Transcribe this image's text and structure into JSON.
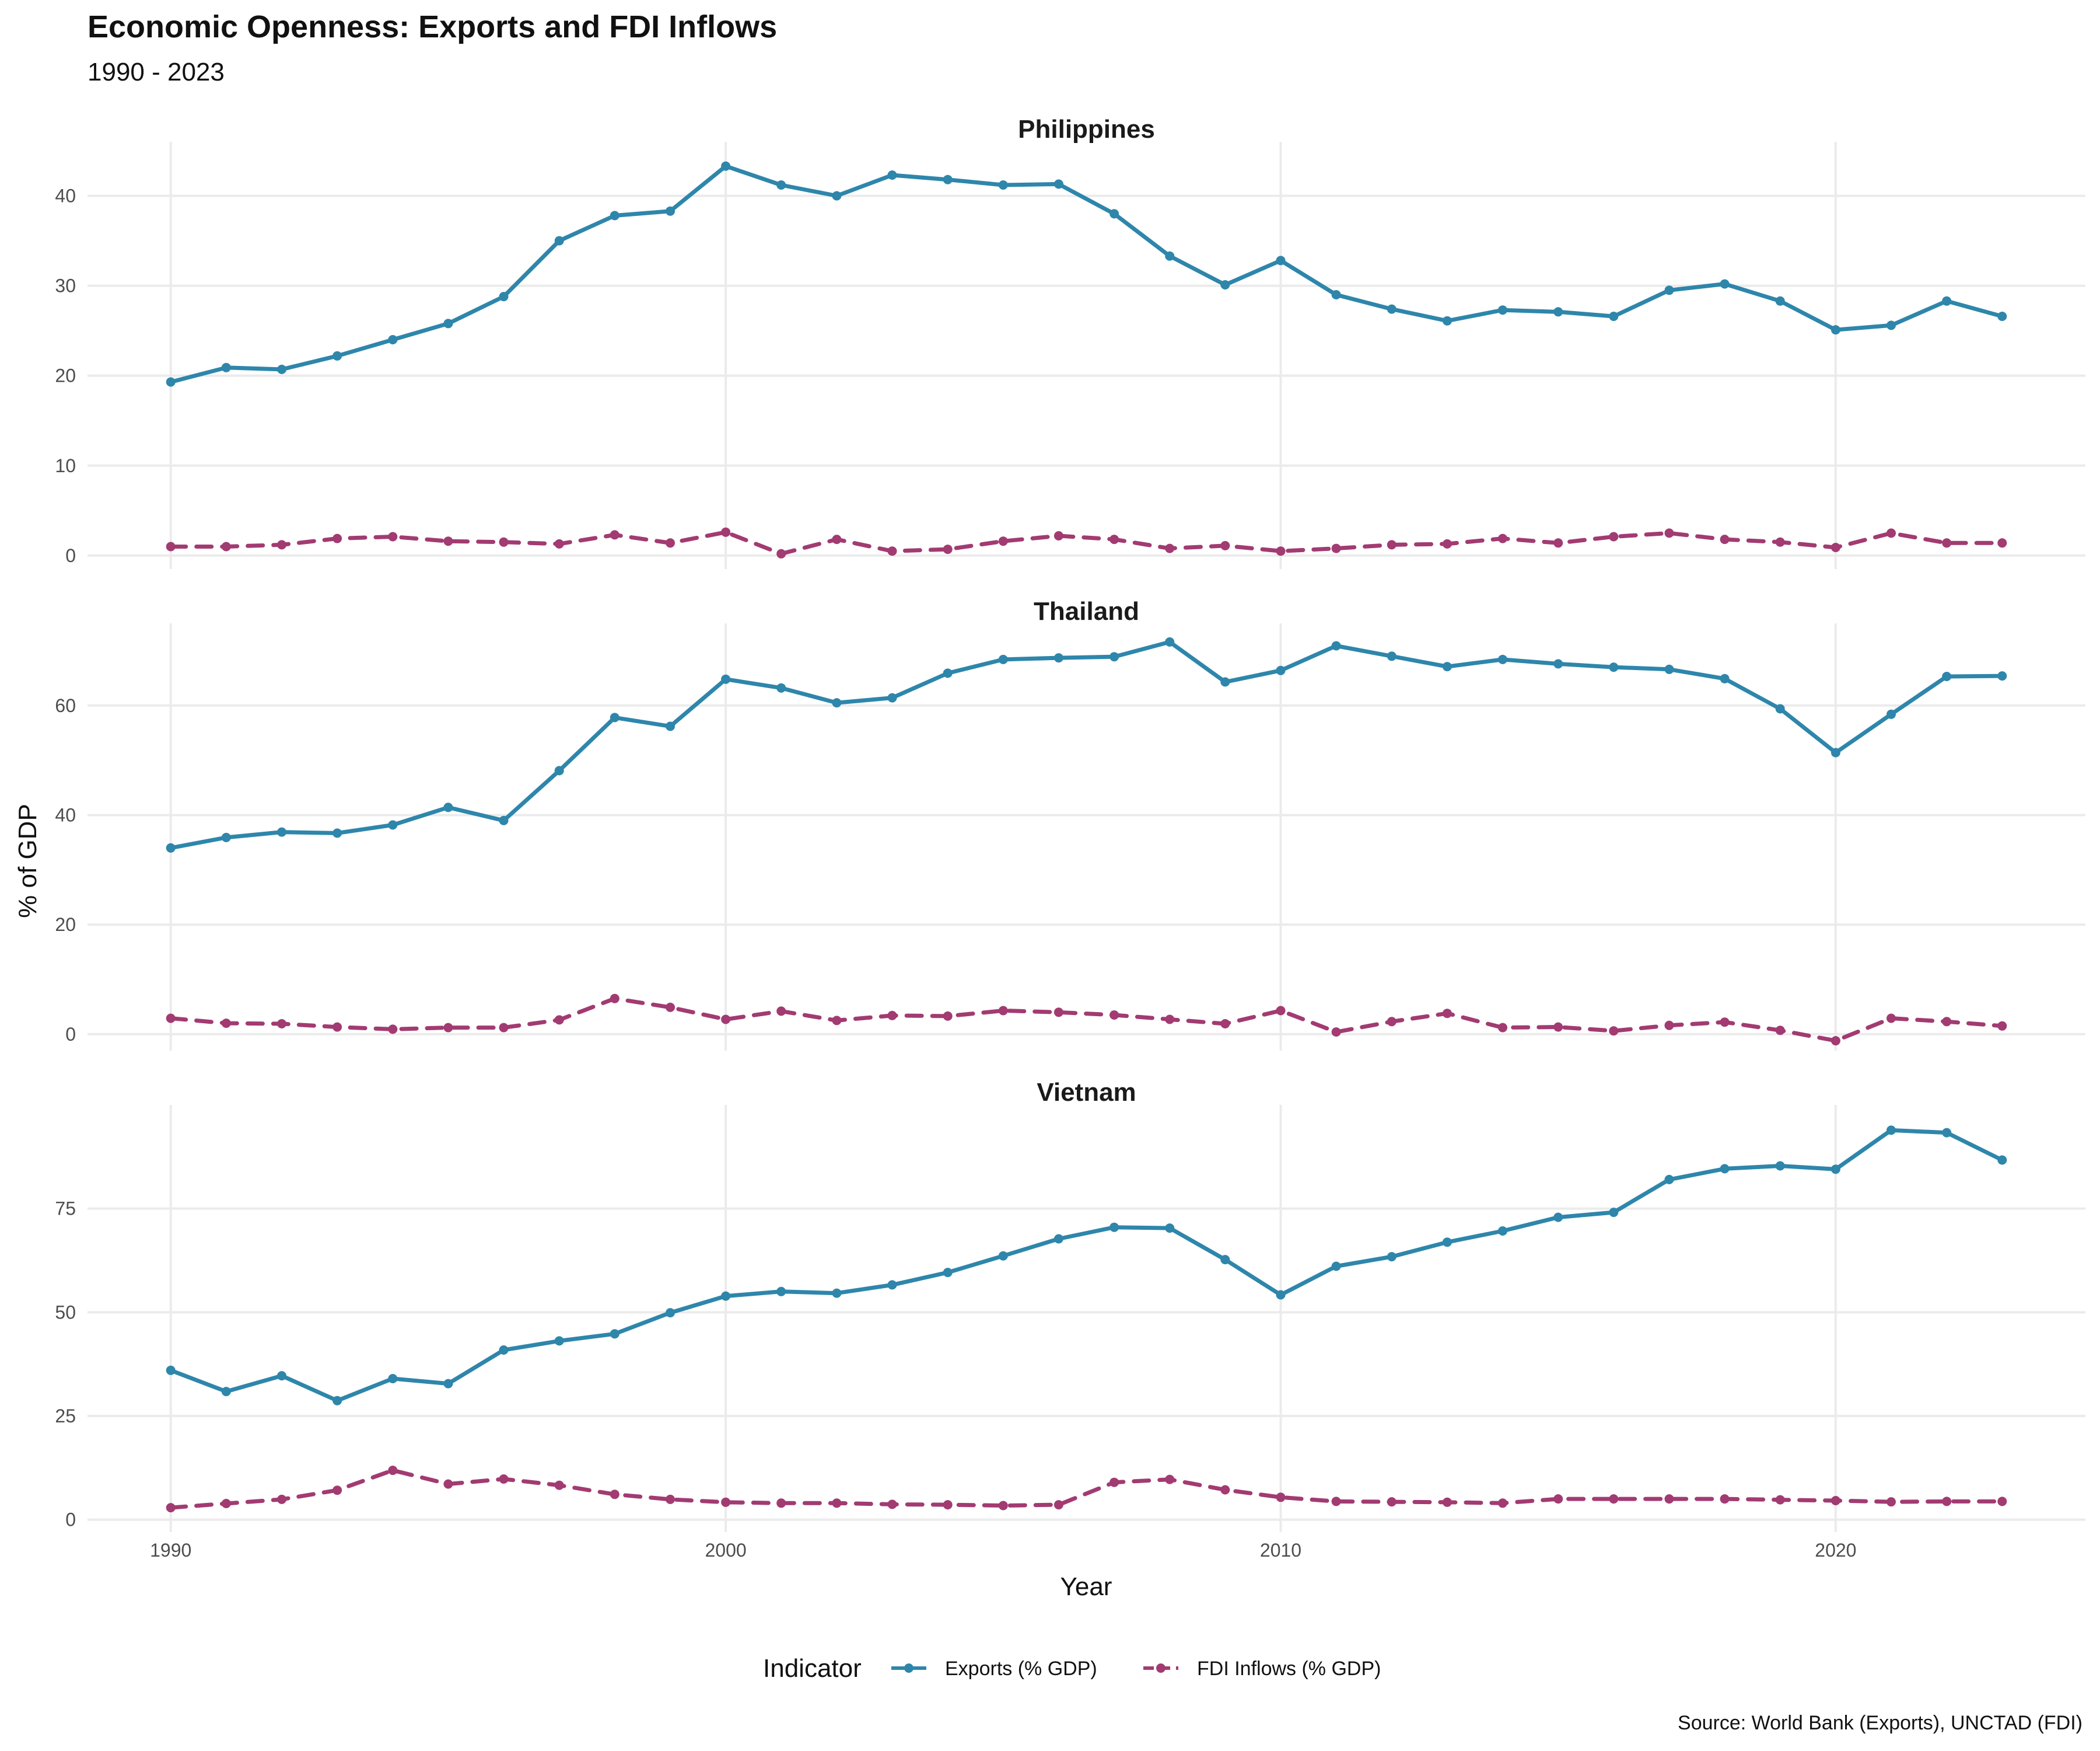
{
  "title": "Economic Openness: Exports and FDI Inflows",
  "subtitle": "1990 - 2023",
  "caption": "Source: World Bank (Exports), UNCTAD (FDI)",
  "colors": {
    "exports": "#2E86AB",
    "fdi": "#A23B72"
  },
  "chart_data": {
    "type": "line",
    "xlabel": "Year",
    "ylabel": "% of GDP",
    "xlim": [
      1988.5,
      2024.5
    ],
    "x_ticks": [
      1990,
      2000,
      2010,
      2020
    ],
    "legend": {
      "title": "Indicator",
      "position": "bottom",
      "entries": [
        "Exports (% GDP)",
        "FDI Inflows (% GDP)"
      ]
    },
    "grid": true,
    "x": [
      1990,
      1991,
      1992,
      1993,
      1994,
      1995,
      1996,
      1997,
      1998,
      1999,
      2000,
      2001,
      2002,
      2003,
      2004,
      2005,
      2006,
      2007,
      2008,
      2009,
      2010,
      2011,
      2012,
      2013,
      2014,
      2015,
      2016,
      2017,
      2018,
      2019,
      2020,
      2021,
      2022,
      2023
    ],
    "panels": [
      {
        "name": "Philippines",
        "ylim": [
          -1.5,
          46
        ],
        "y_ticks": [
          0,
          10,
          20,
          30,
          40
        ],
        "series": [
          {
            "name": "Exports (% GDP)",
            "style": "solid",
            "values": [
              19.3,
              20.9,
              20.7,
              22.2,
              24.0,
              25.8,
              28.8,
              35.0,
              37.8,
              38.3,
              43.3,
              41.2,
              40.0,
              42.3,
              41.8,
              41.2,
              41.3,
              38.0,
              33.3,
              30.1,
              32.8,
              29.0,
              27.4,
              26.1,
              27.3,
              27.1,
              26.6,
              29.5,
              30.2,
              28.3,
              25.1,
              25.6,
              28.3,
              26.6
            ]
          },
          {
            "name": "FDI Inflows (% GDP)",
            "style": "dashed",
            "values": [
              1.0,
              1.0,
              1.2,
              1.9,
              2.1,
              1.6,
              1.5,
              1.3,
              2.3,
              1.4,
              2.6,
              0.2,
              1.8,
              0.5,
              0.7,
              1.6,
              2.2,
              1.8,
              0.8,
              1.1,
              0.5,
              0.8,
              1.2,
              1.3,
              1.9,
              1.4,
              2.1,
              2.5,
              1.8,
              1.5,
              0.9,
              2.5,
              1.4,
              1.4
            ]
          }
        ]
      },
      {
        "name": "Thailand",
        "ylim": [
          -3,
          75
        ],
        "y_ticks": [
          0,
          20,
          40,
          60
        ],
        "series": [
          {
            "name": "Exports (% GDP)",
            "style": "solid",
            "values": [
              34.0,
              35.9,
              36.9,
              36.7,
              38.2,
              41.4,
              39.0,
              48.1,
              57.8,
              56.2,
              64.8,
              63.2,
              60.5,
              61.4,
              65.9,
              68.4,
              68.7,
              68.9,
              71.6,
              64.3,
              66.4,
              70.9,
              69.0,
              67.1,
              68.4,
              67.6,
              67.0,
              66.6,
              64.9,
              59.4,
              51.4,
              58.4,
              65.3,
              65.4
            ]
          },
          {
            "name": "FDI Inflows (% GDP)",
            "style": "dashed",
            "values": [
              2.9,
              2.0,
              1.9,
              1.3,
              0.9,
              1.2,
              1.2,
              2.6,
              6.5,
              4.9,
              2.7,
              4.2,
              2.5,
              3.4,
              3.3,
              4.3,
              4.0,
              3.5,
              2.7,
              1.9,
              4.3,
              0.4,
              2.3,
              3.8,
              1.2,
              1.3,
              0.6,
              1.6,
              2.2,
              0.7,
              -1.2,
              2.9,
              2.3,
              1.5
            ]
          }
        ]
      },
      {
        "name": "Vietnam",
        "ylim": [
          -3,
          100
        ],
        "y_ticks": [
          0,
          25,
          50,
          75
        ],
        "series": [
          {
            "name": "Exports (% GDP)",
            "style": "solid",
            "values": [
              36.0,
              30.9,
              34.7,
              28.7,
              34.0,
              32.8,
              40.9,
              43.1,
              44.8,
              49.9,
              53.9,
              55.0,
              54.6,
              56.6,
              59.6,
              63.6,
              67.7,
              70.5,
              70.3,
              62.7,
              54.2,
              61.1,
              63.4,
              66.9,
              69.6,
              72.9,
              74.1,
              82.0,
              84.6,
              85.3,
              84.5,
              93.9,
              93.3,
              86.7
            ]
          },
          {
            "name": "FDI Inflows (% GDP)",
            "style": "dashed",
            "values": [
              2.9,
              3.9,
              4.9,
              7.1,
              11.9,
              8.6,
              9.8,
              8.3,
              6.1,
              4.9,
              4.2,
              4.0,
              4.0,
              3.7,
              3.6,
              3.4,
              3.6,
              9.0,
              9.7,
              7.2,
              5.4,
              4.4,
              4.3,
              4.2,
              4.0,
              5.0,
              5.0,
              5.0,
              5.0,
              4.8,
              4.6,
              4.3,
              4.4,
              4.4
            ]
          }
        ]
      }
    ]
  }
}
